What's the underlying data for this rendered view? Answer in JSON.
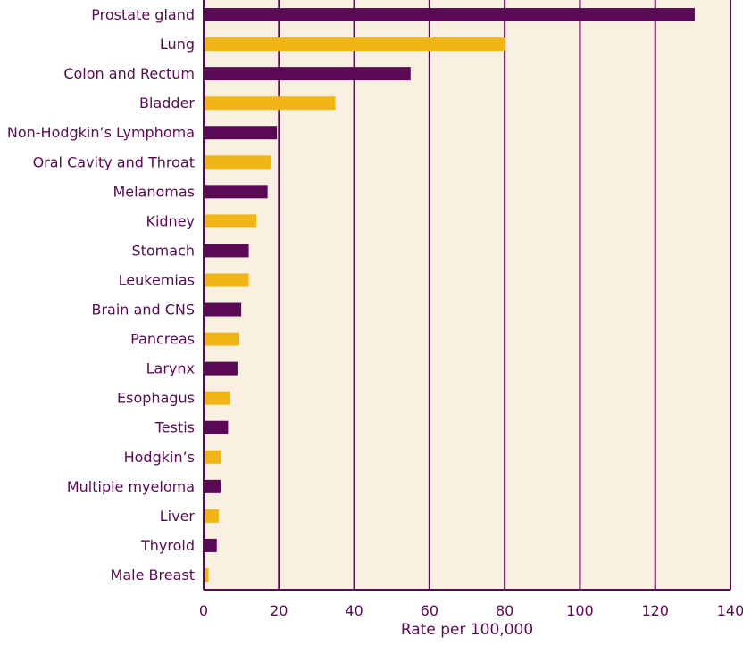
{
  "chart_data": {
    "type": "bar",
    "orientation": "horizontal",
    "categories": [
      "Prostate gland",
      "Lung",
      "Colon and Rectum",
      "Bladder",
      "Non-Hodgkin’s Lymphoma",
      "Oral Cavity and Throat",
      "Melanomas",
      "Kidney",
      "Stomach",
      "Leukemias",
      "Brain and CNS",
      "Pancreas",
      "Larynx",
      "Esophagus",
      "Testis",
      "Hodgkin’s",
      "Multiple myeloma",
      "Liver",
      "Thyroid",
      "Male Breast"
    ],
    "values": [
      130.5,
      80,
      55,
      35,
      19.5,
      18,
      17,
      14,
      12,
      12,
      10,
      9.5,
      9,
      7,
      6.5,
      4.5,
      4.5,
      4,
      3.5,
      1.3
    ],
    "xlabel": "Rate per 100,000",
    "ylabel": "",
    "xlim": [
      0,
      140
    ],
    "xticks": [
      "0",
      "20",
      "40",
      "60",
      "80",
      "100",
      "120",
      "140"
    ],
    "grid": true,
    "colors": {
      "dark_bar": "#5a0a55",
      "light_bar": "#f0b516",
      "plot_background": "#faf0e1",
      "axis": "#5a0a55",
      "text": "#5a0a55"
    }
  }
}
